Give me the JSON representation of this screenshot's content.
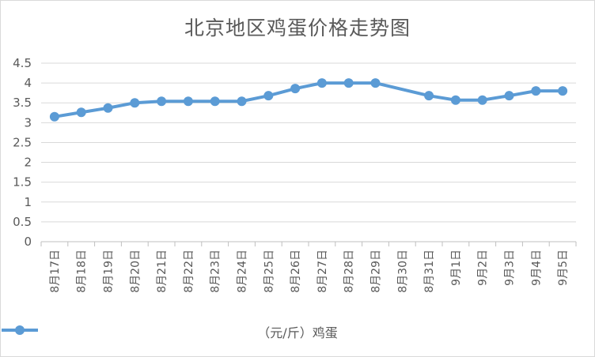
{
  "chart_data": {
    "type": "line",
    "title": "北京地区鸡蛋价格走势图",
    "categories": [
      "8月17日",
      "8月18日",
      "8月19日",
      "8月20日",
      "8月21日",
      "8月22日",
      "8月23日",
      "8月24日",
      "8月25日",
      "8月26日",
      "8月27日",
      "8月28日",
      "8月29日",
      "8月30日",
      "8月31日",
      "9月1日",
      "9月2日",
      "9月3日",
      "9月4日",
      "9月5日"
    ],
    "series": [
      {
        "name": "（元/斤）鸡蛋",
        "color": "#5b9bd5",
        "values": [
          3.15,
          3.26,
          3.37,
          3.5,
          3.54,
          3.54,
          3.54,
          3.54,
          3.68,
          3.86,
          4.0,
          4.0,
          4.0,
          null,
          3.68,
          3.57,
          3.57,
          3.68,
          3.8,
          3.8
        ]
      }
    ],
    "yticks": [
      "0",
      "0.5",
      "1",
      "1.5",
      "2",
      "2.5",
      "3",
      "3.5",
      "4",
      "4.5"
    ],
    "ylim": [
      0,
      4.5
    ],
    "grid": true,
    "legend_position": "bottom"
  }
}
